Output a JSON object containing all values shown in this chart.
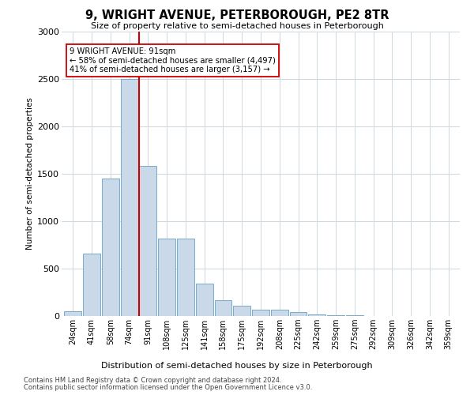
{
  "title": "9, WRIGHT AVENUE, PETERBOROUGH, PE2 8TR",
  "subtitle": "Size of property relative to semi-detached houses in Peterborough",
  "xlabel": "Distribution of semi-detached houses by size in Peterborough",
  "ylabel": "Number of semi-detached properties",
  "categories": [
    "24sqm",
    "41sqm",
    "58sqm",
    "74sqm",
    "91sqm",
    "108sqm",
    "125sqm",
    "141sqm",
    "158sqm",
    "175sqm",
    "192sqm",
    "208sqm",
    "225sqm",
    "242sqm",
    "259sqm",
    "275sqm",
    "292sqm",
    "309sqm",
    "326sqm",
    "342sqm",
    "359sqm"
  ],
  "values": [
    50,
    660,
    1450,
    2500,
    1580,
    820,
    820,
    340,
    170,
    110,
    70,
    70,
    40,
    15,
    10,
    5,
    3,
    2,
    2,
    1,
    1
  ],
  "bar_color": "#c9d9ea",
  "bar_edge_color": "#7aaac8",
  "highlight_index": 4,
  "highlight_color": "#cc0000",
  "annotation_title": "9 WRIGHT AVENUE: 91sqm",
  "annotation_line1": "← 58% of semi-detached houses are smaller (4,497)",
  "annotation_line2": "41% of semi-detached houses are larger (3,157) →",
  "annotation_box_color": "#ffffff",
  "annotation_box_edge_color": "#cc0000",
  "footnote1": "Contains HM Land Registry data © Crown copyright and database right 2024.",
  "footnote2": "Contains public sector information licensed under the Open Government Licence v3.0.",
  "ylim": [
    0,
    3000
  ],
  "yticks": [
    0,
    500,
    1000,
    1500,
    2000,
    2500,
    3000
  ],
  "background_color": "#ffffff",
  "grid_color": "#d0d8e0"
}
